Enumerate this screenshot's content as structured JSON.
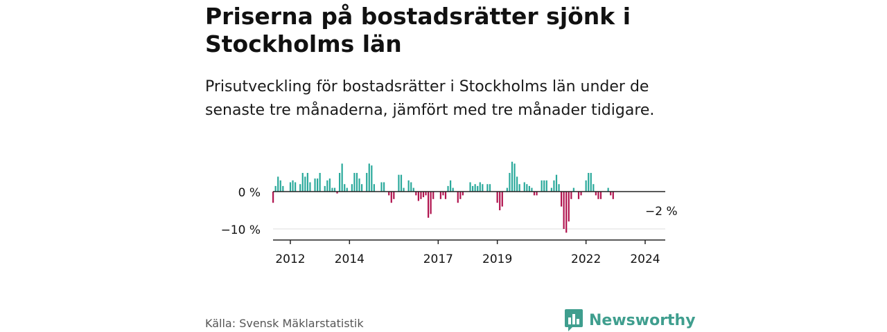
{
  "header": {
    "title": "Priserna på bostadsrätter sjönk i Stockholms län",
    "subtitle": "Prisutveckling för bostadsrätter i Stockholms län under de senaste tre månaderna, jämfört med tre månader tidigare."
  },
  "footer": {
    "source": "Källa: Svensk Mäklarstatistik",
    "brand": "Newsworthy"
  },
  "colors": {
    "positive": "#2aa99b",
    "negative": "#b0134e",
    "brand": "#3f9e8e"
  },
  "chart_data": {
    "type": "bar",
    "title": "Priserna på bostadsrätter sjönk i Stockholms län",
    "subtitle": "Prisutveckling för bostadsrätter i Stockholms län under de senaste tre månaderna, jämfört med tre månader tidigare.",
    "unit": "%",
    "x_start": 2011.0,
    "x_step": 0.0833333,
    "ylim": [
      -12.5,
      8.5
    ],
    "y_ticks": [
      {
        "value": 0,
        "label": "0 %"
      },
      {
        "value": -10,
        "label": "−10 %"
      }
    ],
    "x_ticks": [
      {
        "value": 2012,
        "label": "2012"
      },
      {
        "value": 2014,
        "label": "2014"
      },
      {
        "value": 2017,
        "label": "2017"
      },
      {
        "value": 2019,
        "label": "2019"
      },
      {
        "value": 2022,
        "label": "2022"
      },
      {
        "value": 2024,
        "label": "2024"
      }
    ],
    "annotation": {
      "label": "−2 %",
      "value": -2
    },
    "values": [
      0.0,
      0.0,
      0.0,
      0.0,
      0.0,
      -3.0,
      1.5,
      4.0,
      3.0,
      1.5,
      0.0,
      0.0,
      2.5,
      3.0,
      2.5,
      0.0,
      2.0,
      5.0,
      4.0,
      5.0,
      2.5,
      0.0,
      3.5,
      3.5,
      5.0,
      0.0,
      1.5,
      3.0,
      3.5,
      1.0,
      1.0,
      -0.5,
      5.0,
      7.5,
      2.0,
      1.0,
      0.0,
      2.0,
      5.0,
      5.0,
      3.5,
      2.0,
      0.0,
      5.0,
      7.5,
      7.0,
      2.0,
      0.0,
      0.0,
      2.5,
      2.5,
      0.0,
      -1.0,
      -3.0,
      -2.0,
      0.0,
      4.5,
      4.5,
      1.0,
      0.0,
      3.0,
      2.5,
      1.0,
      -1.0,
      -2.5,
      -2.0,
      -1.5,
      -1.0,
      -7.0,
      -6.0,
      -2.0,
      0.0,
      0.0,
      -2.0,
      -1.0,
      -2.0,
      1.5,
      3.0,
      1.0,
      0.0,
      -3.0,
      -2.0,
      -1.0,
      0.0,
      0.0,
      2.5,
      1.5,
      2.0,
      1.5,
      2.5,
      2.0,
      0.0,
      2.0,
      2.0,
      0.0,
      0.0,
      -3.0,
      -5.0,
      -4.0,
      0.0,
      1.0,
      5.0,
      8.0,
      7.5,
      4.0,
      2.0,
      0.0,
      2.5,
      2.0,
      1.5,
      1.0,
      -1.0,
      -1.0,
      0.0,
      3.0,
      3.0,
      3.0,
      0.0,
      1.0,
      3.0,
      4.5,
      2.0,
      -4.0,
      -10.0,
      -11.0,
      -8.0,
      -2.0,
      1.0,
      0.0,
      -2.0,
      -1.0,
      0.0,
      3.0,
      5.0,
      5.0,
      2.0,
      -1.0,
      -2.0,
      -2.0,
      0.0,
      0.0,
      1.0,
      -1.0,
      -2.0
    ]
  }
}
